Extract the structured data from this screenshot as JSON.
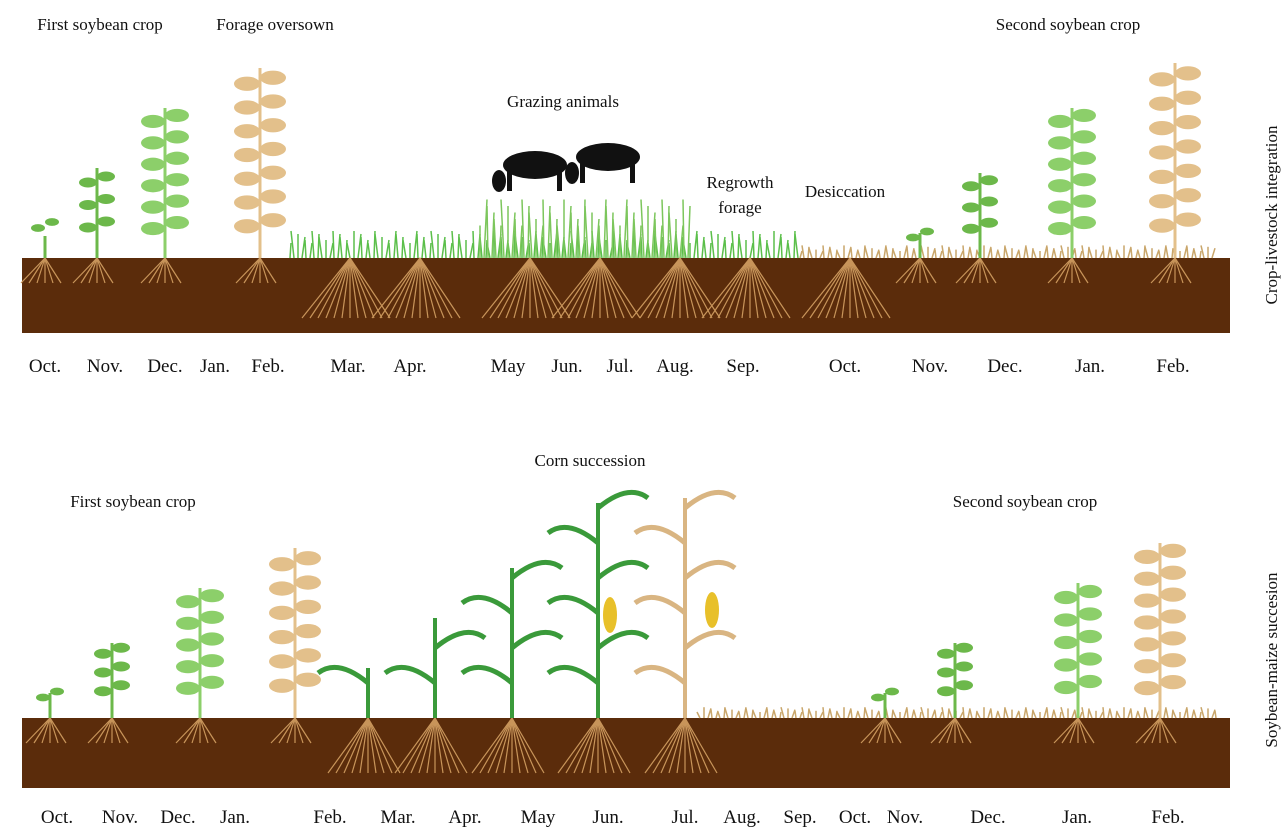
{
  "panels": [
    {
      "side_label": "Crop-livestock integration",
      "annotations": [
        "First soybean crop",
        "Forage oversown",
        "Grazing animals",
        "Regrowth forage",
        "Desiccation",
        "Second soybean crop"
      ],
      "months": [
        "Oct.",
        "Nov.",
        "Dec.",
        "Jan.",
        "Feb.",
        "Mar.",
        "Apr.",
        "May",
        "Jun.",
        "Jul.",
        "Aug.",
        "Sep.",
        "Oct.",
        "Nov.",
        "Dec.",
        "Jan.",
        "Feb."
      ]
    },
    {
      "side_label": "Soybean-maize succesion",
      "annotations": [
        "Corn succession",
        "First soybean crop",
        "Second soybean crop"
      ],
      "months": [
        "Oct.",
        "Nov.",
        "Dec.",
        "Jan.",
        "Feb.",
        "Mar.",
        "Apr.",
        "May",
        "Jun.",
        "Jul.",
        "Aug.",
        "Sep.",
        "Oct.",
        "Nov.",
        "Dec.",
        "Jan.",
        "Feb."
      ]
    }
  ]
}
